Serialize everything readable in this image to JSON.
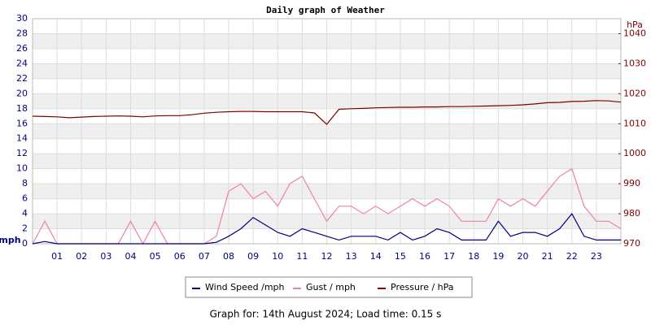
{
  "chart_data": {
    "type": "line",
    "title": "Daily graph of Weather",
    "footer": "Graph for: 14th August 2024; Load time: 0.15 s",
    "y_label": "mph",
    "y2_label": "hPa",
    "x": [
      0,
      0.5,
      1,
      1.5,
      2,
      2.5,
      3,
      3.5,
      4,
      4.5,
      5,
      5.5,
      6,
      6.5,
      7,
      7.5,
      8,
      8.5,
      9,
      9.5,
      10,
      10.5,
      11,
      11.5,
      12,
      12.5,
      13,
      13.5,
      14,
      14.5,
      15,
      15.5,
      16,
      16.5,
      17,
      17.5,
      18,
      18.5,
      19,
      19.5,
      20,
      20.5,
      21,
      21.5,
      22,
      22.5,
      23,
      23.5,
      24
    ],
    "xlim": [
      0,
      24
    ],
    "xticks": [
      {
        "value": 1,
        "label": "01"
      },
      {
        "value": 2,
        "label": "02"
      },
      {
        "value": 3,
        "label": "03"
      },
      {
        "value": 4,
        "label": "04"
      },
      {
        "value": 5,
        "label": "05"
      },
      {
        "value": 6,
        "label": "06"
      },
      {
        "value": 7,
        "label": "07"
      },
      {
        "value": 8,
        "label": "08"
      },
      {
        "value": 9,
        "label": "09"
      },
      {
        "value": 10,
        "label": "10"
      },
      {
        "value": 11,
        "label": "11"
      },
      {
        "value": 12,
        "label": "12"
      },
      {
        "value": 13,
        "label": "13"
      },
      {
        "value": 14,
        "label": "14"
      },
      {
        "value": 15,
        "label": "15"
      },
      {
        "value": 16,
        "label": "16"
      },
      {
        "value": 17,
        "label": "17"
      },
      {
        "value": 18,
        "label": "18"
      },
      {
        "value": 19,
        "label": "19"
      },
      {
        "value": 20,
        "label": "20"
      },
      {
        "value": 21,
        "label": "21"
      },
      {
        "value": 22,
        "label": "22"
      },
      {
        "value": 23,
        "label": "23"
      }
    ],
    "ylim": [
      0,
      30
    ],
    "yticks": [
      0,
      2,
      4,
      6,
      8,
      10,
      12,
      14,
      16,
      18,
      20,
      22,
      24,
      26,
      28,
      30
    ],
    "y2lim": [
      970,
      1045
    ],
    "y2ticks": [
      970,
      980,
      990,
      1000,
      1010,
      1020,
      1030,
      1040
    ],
    "grid": true,
    "series": [
      {
        "name": "Wind Speed /mph",
        "color": "#000080",
        "axis": "y",
        "values": [
          0,
          0.3,
          0,
          0,
          0,
          0,
          0,
          0,
          0,
          0,
          0,
          0,
          0,
          0,
          0,
          0.2,
          1,
          2,
          3.5,
          2.5,
          1.5,
          1,
          2,
          1.5,
          1,
          0.5,
          1,
          1,
          1,
          0.5,
          1.5,
          0.5,
          1,
          2,
          1.5,
          0.5,
          0.5,
          0.5,
          3,
          1,
          1.5,
          1.5,
          1,
          2,
          4,
          1,
          0.5,
          0.5,
          0.5
        ]
      },
      {
        "name": "Gust / mph",
        "color": "#f080a8",
        "axis": "y",
        "values": [
          0,
          3,
          0,
          0,
          0,
          0,
          0,
          0,
          3,
          0,
          3,
          0,
          0,
          0,
          0,
          1,
          7,
          8,
          6,
          7,
          5,
          8,
          9,
          6,
          3,
          5,
          5,
          4,
          5,
          4,
          5,
          6,
          5,
          6,
          5,
          3,
          3,
          3,
          6,
          5,
          6,
          5,
          7,
          9,
          10,
          5,
          3,
          3,
          2
        ]
      },
      {
        "name": "Pressure / hPa",
        "color": "#800000",
        "axis": "y2",
        "values": [
          1012.5,
          1012.4,
          1012.3,
          1012,
          1012.2,
          1012.4,
          1012.5,
          1012.6,
          1012.5,
          1012.3,
          1012.6,
          1012.7,
          1012.7,
          1013,
          1013.5,
          1013.8,
          1014,
          1014.1,
          1014.1,
          1014,
          1014,
          1014,
          1014,
          1013.6,
          1009.8,
          1014.8,
          1015,
          1015.1,
          1015.3,
          1015.4,
          1015.5,
          1015.5,
          1015.6,
          1015.6,
          1015.7,
          1015.7,
          1015.8,
          1015.9,
          1016,
          1016.1,
          1016.3,
          1016.6,
          1017,
          1017.1,
          1017.4,
          1017.5,
          1017.7,
          1017.6,
          1017.2
        ]
      }
    ]
  }
}
